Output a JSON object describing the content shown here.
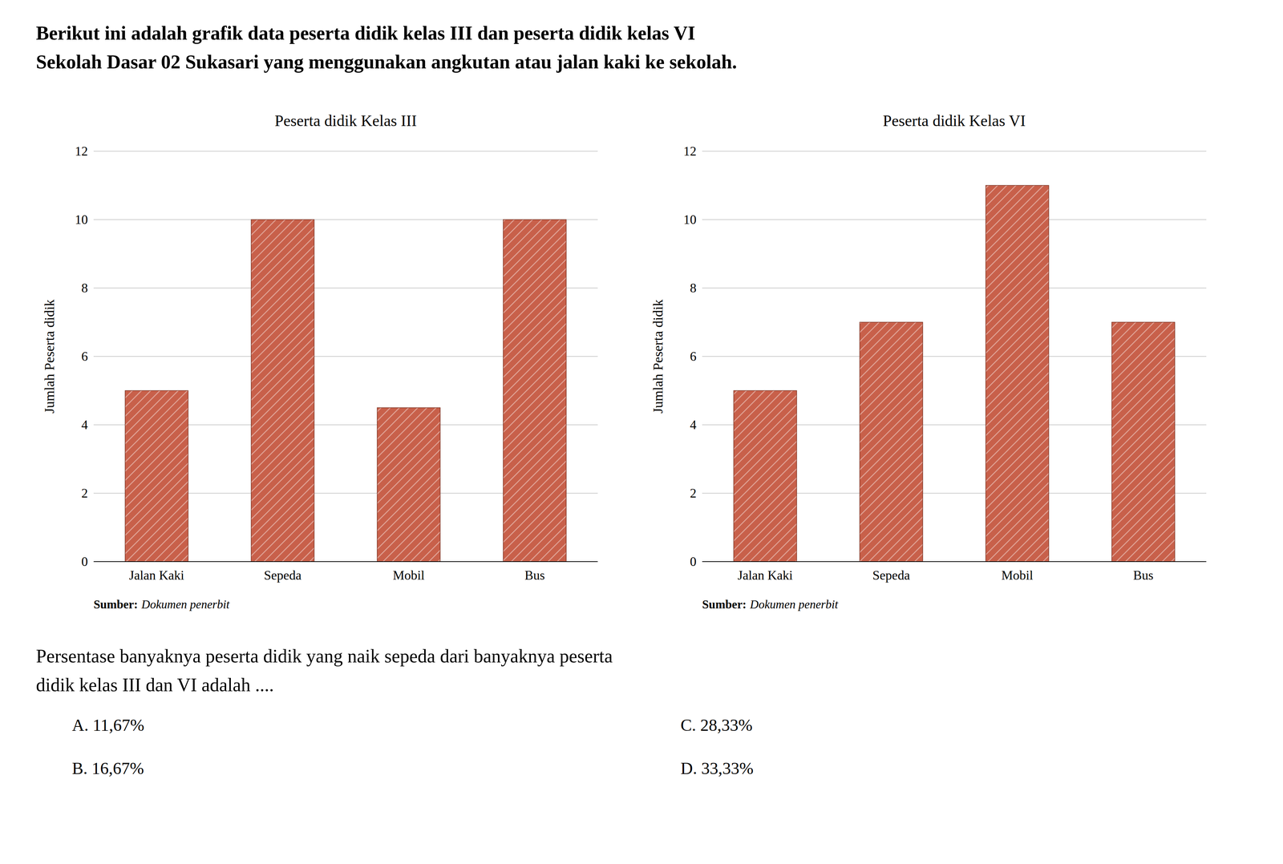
{
  "title": "Berikut ini adalah grafik data peserta didik kelas III dan peserta didik kelas VI\nSekolah Dasar 02 Sukasari yang menggunakan angkutan atau jalan kaki ke sekolah.",
  "annotations": [
    "Persentase banyaknya peserta didik yang naik sepeda dari banyaknya peserta",
    "didik kelas III dan VI adalah ....",
    "A. 11,67%",
    "B. 16,67%",
    "C. 28,33%",
    "D. 33,33%"
  ],
  "chart_data": [
    {
      "type": "bar",
      "title": "Peserta didik Kelas III",
      "categories": [
        "Jalan Kaki",
        "Sepeda",
        "Mobil",
        "Bus"
      ],
      "values": [
        5,
        10,
        4.5,
        10
      ],
      "color": "#c8604a",
      "ylabel": "Jumlah Peserta didik",
      "ylim": [
        0,
        12
      ],
      "yticks": [
        0,
        2,
        4,
        6,
        8,
        10,
        12
      ],
      "grid": true,
      "annotations": [
        "Sumber:",
        "Dokumen penerbit"
      ]
    },
    {
      "type": "bar",
      "title": "Peserta didik Kelas VI",
      "categories": [
        "Jalan Kaki",
        "Sepeda",
        "Mobil",
        "Bus"
      ],
      "values": [
        5,
        7,
        11,
        7
      ],
      "color": "#c8604a",
      "ylabel": "Jumlah Peserta didik",
      "ylim": [
        0,
        12
      ],
      "yticks": [
        0,
        2,
        4,
        6,
        8,
        10,
        12
      ],
      "grid": true,
      "annotations": [
        "Sumber:",
        "Dokumen penerbit"
      ]
    }
  ]
}
